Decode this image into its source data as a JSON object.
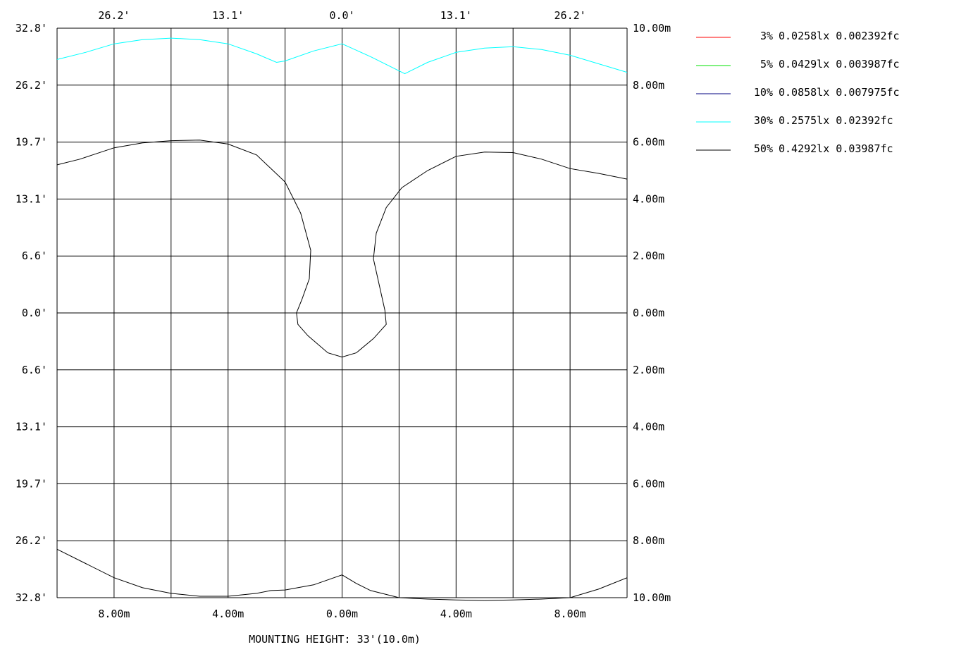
{
  "chart_data": {
    "type": "line",
    "chart_kind": "isolux contour plot",
    "grid": true,
    "x_range_m": [
      -10,
      10
    ],
    "y_range_m": [
      -10,
      10
    ],
    "top_ticks": [
      "26.2'",
      "13.1'",
      "0.0'",
      "13.1'",
      "26.2'"
    ],
    "bottom_ticks": [
      "8.00m",
      "4.00m",
      "0.00m",
      "4.00m",
      "8.00m"
    ],
    "left_ticks": [
      "32.8'",
      "26.2'",
      "19.7'",
      "13.1'",
      "6.6'",
      "0.0'",
      "6.6'",
      "13.1'",
      "19.7'",
      "26.2'",
      "32.8'"
    ],
    "right_ticks": [
      "10.00m",
      "8.00m",
      "6.00m",
      "4.00m",
      "2.00m",
      "0.00m",
      "2.00m",
      "4.00m",
      "6.00m",
      "8.00m",
      "10.00m"
    ],
    "footer": "MOUNTING HEIGHT: 33'(10.0m)",
    "legend": [
      {
        "percent": "3%",
        "lux": "0.0258lx",
        "fc": "0.002392fc",
        "color": "#ff0000"
      },
      {
        "percent": "5%",
        "lux": "0.0429lx",
        "fc": "0.003987fc",
        "color": "#00e000"
      },
      {
        "percent": "10%",
        "lux": "0.0858lx",
        "fc": "0.007975fc",
        "color": "#000080"
      },
      {
        "percent": "30%",
        "lux": "0.2575lx",
        "fc": "0.02392fc",
        "color": "#00ffff"
      },
      {
        "percent": "50%",
        "lux": "0.4292lx",
        "fc": "0.03987fc",
        "color": "#000000"
      }
    ],
    "series": [
      {
        "color": "#00ffff",
        "points": [
          [
            -10,
            8.9
          ],
          [
            -9,
            9.15
          ],
          [
            -8,
            9.45
          ],
          [
            -7,
            9.6
          ],
          [
            -6,
            9.65
          ],
          [
            -5,
            9.6
          ],
          [
            -4,
            9.45
          ],
          [
            -3,
            9.1
          ],
          [
            -2.3,
            8.8
          ],
          [
            -2,
            8.85
          ],
          [
            -1,
            9.2
          ],
          [
            0,
            9.45
          ],
          [
            1,
            9.0
          ],
          [
            2.2,
            8.4
          ],
          [
            3,
            8.8
          ],
          [
            4,
            9.15
          ],
          [
            5,
            9.3
          ],
          [
            6,
            9.35
          ],
          [
            7,
            9.25
          ],
          [
            8,
            9.05
          ],
          [
            9,
            8.75
          ],
          [
            10,
            8.45
          ]
        ]
      },
      {
        "color": "#000000",
        "points": [
          [
            -10,
            5.2
          ],
          [
            -9.2,
            5.4
          ],
          [
            -8,
            5.8
          ],
          [
            -7,
            5.97
          ],
          [
            -6,
            6.05
          ],
          [
            -5,
            6.07
          ],
          [
            -4,
            5.93
          ],
          [
            -3,
            5.55
          ],
          [
            -2,
            4.6
          ],
          [
            -1.45,
            3.5
          ],
          [
            -1.1,
            2.2
          ],
          [
            -1.15,
            1.2
          ],
          [
            -1.4,
            0.5
          ],
          [
            -1.6,
            0.0
          ],
          [
            -1.55,
            -0.4
          ],
          [
            -1.2,
            -0.8
          ],
          [
            -0.5,
            -1.4
          ],
          [
            0,
            -1.55
          ],
          [
            0.5,
            -1.4
          ],
          [
            1.1,
            -0.9
          ],
          [
            1.55,
            -0.4
          ],
          [
            1.5,
            0.1
          ],
          [
            1.3,
            1.0
          ],
          [
            1.1,
            1.9
          ],
          [
            1.2,
            2.8
          ],
          [
            1.55,
            3.7
          ],
          [
            2.1,
            4.4
          ],
          [
            3,
            5.0
          ],
          [
            4,
            5.5
          ],
          [
            5,
            5.65
          ],
          [
            6,
            5.63
          ],
          [
            7,
            5.4
          ],
          [
            8,
            5.07
          ],
          [
            9,
            4.9
          ],
          [
            10,
            4.7
          ]
        ]
      },
      {
        "color": "#000000",
        "points": [
          [
            -10,
            -8.3
          ],
          [
            -9,
            -8.8
          ],
          [
            -8,
            -9.3
          ],
          [
            -7,
            -9.65
          ],
          [
            -6,
            -9.85
          ],
          [
            -5,
            -9.95
          ],
          [
            -4,
            -9.95
          ],
          [
            -3,
            -9.85
          ],
          [
            -2.5,
            -9.75
          ],
          [
            -2,
            -9.73
          ],
          [
            -1,
            -9.55
          ],
          [
            0,
            -9.2
          ],
          [
            0.5,
            -9.5
          ],
          [
            1,
            -9.75
          ],
          [
            2,
            -10.0
          ],
          [
            3,
            -10.05
          ],
          [
            4,
            -10.08
          ],
          [
            5,
            -10.1
          ],
          [
            6,
            -10.08
          ],
          [
            7,
            -10.05
          ],
          [
            8,
            -10.0
          ],
          [
            9,
            -9.7
          ],
          [
            10,
            -9.3
          ]
        ]
      }
    ]
  }
}
